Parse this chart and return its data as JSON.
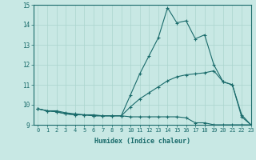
{
  "title": "",
  "xlabel": "Humidex (Indice chaleur)",
  "xlim": [
    -0.5,
    23
  ],
  "ylim": [
    9,
    15
  ],
  "xticks": [
    0,
    1,
    2,
    3,
    4,
    5,
    6,
    7,
    8,
    9,
    10,
    11,
    12,
    13,
    14,
    15,
    16,
    17,
    18,
    19,
    20,
    21,
    22,
    23
  ],
  "yticks": [
    9,
    10,
    11,
    12,
    13,
    14,
    15
  ],
  "background_color": "#c8e8e4",
  "line_color": "#1a6b6b",
  "grid_color": "#aad4ce",
  "line1_x": [
    0,
    1,
    2,
    3,
    4,
    5,
    6,
    7,
    8,
    9,
    10,
    11,
    12,
    13,
    14,
    15,
    16,
    17,
    18,
    19,
    20,
    21,
    22,
    23
  ],
  "line1_y": [
    9.8,
    9.7,
    9.7,
    9.6,
    9.55,
    9.5,
    9.5,
    9.45,
    9.45,
    9.45,
    10.5,
    11.55,
    12.45,
    13.35,
    14.85,
    14.1,
    14.2,
    13.3,
    13.5,
    12.0,
    11.15,
    11.0,
    9.4,
    9.0
  ],
  "line2_x": [
    0,
    1,
    2,
    3,
    4,
    5,
    6,
    7,
    8,
    9,
    10,
    11,
    12,
    13,
    14,
    15,
    16,
    17,
    18,
    19,
    20,
    21,
    22,
    23
  ],
  "line2_y": [
    9.8,
    9.7,
    9.65,
    9.55,
    9.5,
    9.5,
    9.45,
    9.45,
    9.45,
    9.45,
    9.9,
    10.3,
    10.6,
    10.9,
    11.2,
    11.4,
    11.5,
    11.55,
    11.6,
    11.7,
    11.15,
    11.0,
    9.5,
    9.0
  ],
  "line3_x": [
    0,
    1,
    2,
    3,
    4,
    5,
    6,
    7,
    8,
    9,
    10,
    11,
    12,
    13,
    14,
    15,
    16,
    17,
    18,
    19,
    20,
    21,
    22,
    23
  ],
  "line3_y": [
    9.8,
    9.7,
    9.65,
    9.55,
    9.5,
    9.5,
    9.45,
    9.45,
    9.45,
    9.45,
    9.4,
    9.4,
    9.4,
    9.4,
    9.4,
    9.4,
    9.35,
    9.1,
    9.1,
    9.0,
    9.0,
    9.0,
    9.0,
    9.0
  ]
}
